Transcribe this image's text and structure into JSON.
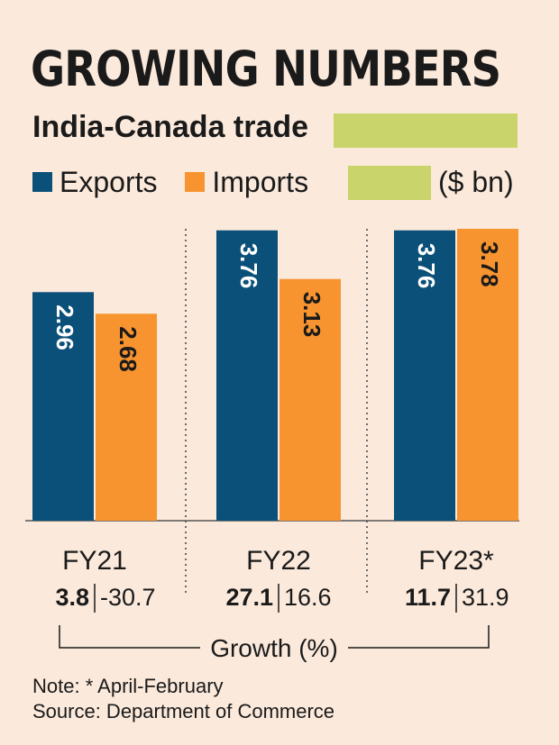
{
  "chart_data": {
    "type": "bar",
    "title": "GROWING NUMBERS",
    "subtitle": "India-Canada trade",
    "unit": "($ bn)",
    "categories": [
      "FY21",
      "FY22",
      "FY23*"
    ],
    "series": [
      {
        "name": "Exports",
        "color": "#0b5079",
        "values": [
          2.96,
          3.76,
          3.76
        ]
      },
      {
        "name": "Imports",
        "color": "#f7942f",
        "values": [
          2.68,
          3.13,
          3.78
        ]
      }
    ],
    "growth_label": "Growth (%)",
    "growth": [
      {
        "exports": "3.8",
        "imports": "-30.7"
      },
      {
        "exports": "27.1",
        "imports": "16.6"
      },
      {
        "exports": "11.7",
        "imports": "31.9"
      }
    ],
    "ylim": [
      0,
      3.78
    ],
    "legend_position": "top-left"
  },
  "notes": {
    "note": "Note: * April-February",
    "source": "Source: Department of Commerce"
  },
  "colors": {
    "background": "#fbe9db",
    "highlight": "#c9d46a"
  }
}
